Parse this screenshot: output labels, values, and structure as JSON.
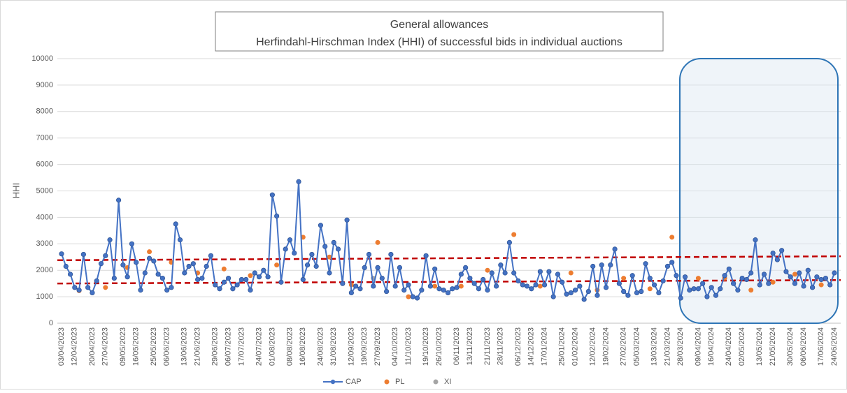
{
  "chart_data": {
    "type": "line",
    "title": "General allowances",
    "subtitle": "Herfindahl-Hirschman Index (HHI) of successful bids in individual auctions",
    "y_label": "HHI",
    "categories": [
      "03/04/2023",
      null,
      null,
      "12/04/2023",
      null,
      null,
      null,
      "20/04/2023",
      null,
      null,
      "27/04/2023",
      null,
      null,
      null,
      "09/05/2023",
      null,
      null,
      "16/05/2023",
      null,
      null,
      null,
      "25/05/2023",
      null,
      null,
      "06/06/2023",
      null,
      null,
      null,
      "13/06/2023",
      null,
      null,
      "21/06/2023",
      null,
      null,
      null,
      "29/06/2023",
      null,
      null,
      "06/07/2023",
      null,
      null,
      "17/07/2023",
      null,
      null,
      null,
      "24/07/2023",
      null,
      null,
      "01/08/2023",
      null,
      null,
      null,
      "08/08/2023",
      null,
      null,
      "16/08/2023",
      null,
      null,
      null,
      "24/08/2023",
      null,
      null,
      "31/08/2023",
      null,
      null,
      null,
      "12/09/2023",
      null,
      null,
      "19/09/2023",
      null,
      null,
      "27/09/2023",
      null,
      null,
      null,
      "04/10/2023",
      null,
      null,
      "11/10/2023",
      null,
      null,
      null,
      "19/10/2023",
      null,
      null,
      "26/10/2023",
      null,
      null,
      null,
      "06/11/2023",
      null,
      null,
      "13/11/2023",
      null,
      null,
      null,
      "21/11/2023",
      null,
      null,
      "28/11/2023",
      null,
      null,
      null,
      "06/12/2023",
      null,
      null,
      "14/12/2023",
      null,
      null,
      "17/01/2024",
      null,
      null,
      null,
      "25/01/2024",
      null,
      null,
      "01/02/2024",
      null,
      null,
      null,
      "12/02/2024",
      null,
      null,
      "19/02/2024",
      null,
      null,
      null,
      "27/02/2024",
      null,
      null,
      "05/03/2024",
      null,
      null,
      null,
      "13/03/2024",
      null,
      null,
      "21/03/2024",
      null,
      null,
      "28/03/2024",
      null,
      null,
      null,
      "09/04/2024",
      null,
      null,
      "16/04/2024",
      null,
      null,
      null,
      "24/04/2024",
      null,
      null,
      "02/05/2024",
      null,
      null,
      null,
      "13/05/2024",
      null,
      null,
      "21/05/2024",
      null,
      null,
      null,
      "30/05/2024",
      null,
      null,
      "06/06/2024",
      null,
      null,
      null,
      "17/06/2024",
      null,
      null,
      "24/06/2024"
    ],
    "series": [
      {
        "name": "CAP",
        "color": "#4472c4",
        "kind": "line",
        "values": [
          2620,
          2150,
          1850,
          1350,
          1250,
          2600,
          1350,
          1150,
          1600,
          2250,
          2550,
          3150,
          1700,
          4650,
          2200,
          1750,
          3000,
          2300,
          1250,
          1900,
          2450,
          2350,
          1850,
          1700,
          1250,
          1350,
          3750,
          3150,
          1900,
          2150,
          2250,
          1650,
          1700,
          2150,
          2550,
          1450,
          1300,
          1550,
          1700,
          1300,
          1450,
          1650,
          1650,
          1250,
          1900,
          1750,
          2000,
          1750,
          4850,
          4050,
          1550,
          2800,
          3150,
          2650,
          5350,
          1650,
          2200,
          2600,
          2150,
          3700,
          2900,
          1900,
          3050,
          2800,
          1500,
          3900,
          1150,
          1400,
          1300,
          2100,
          2600,
          1400,
          2100,
          1700,
          1200,
          2600,
          1400,
          2100,
          1250,
          1450,
          1000,
          950,
          1250,
          2550,
          1400,
          2050,
          1300,
          1250,
          1150,
          1300,
          1350,
          1850,
          2100,
          1700,
          1500,
          1300,
          1650,
          1250,
          1900,
          1400,
          2200,
          1900,
          3050,
          1900,
          1600,
          1450,
          1400,
          1300,
          1450,
          1950,
          1450,
          1950,
          1000,
          1850,
          1550,
          1100,
          1150,
          1250,
          1400,
          900,
          1200,
          2150,
          1050,
          2200,
          1350,
          2200,
          2800,
          1500,
          1200,
          1050,
          1800,
          1150,
          1200,
          2250,
          1700,
          1450,
          1150,
          1600,
          2150,
          2300,
          1800,
          950,
          1750,
          1250,
          1300,
          1300,
          1500,
          1000,
          1350,
          1050,
          1300,
          1800,
          2050,
          1500,
          1250,
          1700,
          1650,
          1900,
          3150,
          1450,
          1850,
          1500,
          2650,
          2400,
          2750,
          1950,
          1750,
          1500,
          1900,
          1400,
          2000,
          1350,
          1750,
          1650,
          1700,
          1450,
          1900
        ]
      },
      {
        "name": "PL",
        "color": "#ed7d31",
        "kind": "scatter",
        "values": [
          null,
          null,
          null,
          null,
          1230,
          null,
          null,
          null,
          null,
          null,
          1350,
          null,
          null,
          null,
          null,
          2100,
          null,
          null,
          null,
          null,
          2700,
          null,
          null,
          null,
          null,
          2300,
          null,
          null,
          null,
          null,
          null,
          1900,
          null,
          null,
          null,
          null,
          null,
          2050,
          null,
          null,
          null,
          null,
          null,
          1800,
          null,
          null,
          null,
          null,
          null,
          2200,
          null,
          null,
          null,
          null,
          null,
          3250,
          null,
          null,
          null,
          null,
          null,
          2500,
          null,
          null,
          null,
          null,
          1450,
          null,
          null,
          null,
          null,
          null,
          3050,
          null,
          null,
          null,
          null,
          null,
          null,
          1000,
          null,
          null,
          null,
          null,
          null,
          1400,
          null,
          null,
          null,
          null,
          null,
          1400,
          null,
          null,
          null,
          null,
          null,
          2000,
          null,
          null,
          null,
          null,
          null,
          3350,
          null,
          null,
          null,
          null,
          null,
          1400,
          null,
          null,
          null,
          null,
          null,
          null,
          1900,
          null,
          null,
          null,
          null,
          null,
          1250,
          null,
          null,
          null,
          null,
          null,
          1700,
          null,
          null,
          null,
          null,
          null,
          1300,
          null,
          null,
          null,
          null,
          3250,
          null,
          null,
          null,
          null,
          null,
          1700,
          null,
          null,
          null,
          null,
          null,
          1700,
          null,
          null,
          null,
          null,
          null,
          1250,
          null,
          null,
          null,
          null,
          1550,
          null,
          null,
          null,
          null,
          1850,
          null,
          null,
          null,
          null,
          null,
          1450,
          null,
          null,
          null
        ]
      },
      {
        "name": "XI",
        "color": "#a5a5a5",
        "kind": "scatter",
        "values": [
          null,
          null,
          null,
          null,
          null,
          null,
          null,
          null,
          null,
          null,
          null,
          null,
          null,
          null,
          null,
          null,
          null,
          null,
          null,
          null,
          null,
          null,
          null,
          null,
          null,
          null,
          null,
          null,
          null,
          null,
          null,
          null,
          null,
          null,
          null,
          null,
          null,
          null,
          null,
          null,
          null,
          null,
          null,
          null,
          null,
          null,
          null,
          null,
          null,
          null,
          null,
          null,
          null,
          null,
          null,
          null,
          null,
          null,
          null,
          null,
          null,
          null,
          null,
          null,
          null,
          null,
          null,
          null,
          null,
          null,
          null,
          1700,
          null,
          null,
          null,
          null,
          null,
          null,
          null,
          null,
          null,
          null,
          null,
          null,
          null,
          null,
          null,
          null,
          null,
          null,
          null,
          null,
          null,
          null,
          null,
          null,
          null,
          null,
          null,
          null,
          null,
          null,
          null,
          null,
          null,
          null,
          null,
          null,
          null,
          null,
          null,
          null,
          null,
          null,
          null,
          null,
          null,
          null,
          null,
          null,
          null,
          null,
          null,
          null,
          null,
          null,
          null,
          null,
          null,
          null,
          null,
          null,
          null,
          null,
          null,
          null,
          null,
          null,
          null,
          null,
          null,
          null,
          null,
          null,
          null,
          null,
          null,
          null,
          null,
          null,
          null,
          null,
          null,
          null,
          null,
          null,
          null,
          null,
          null,
          null,
          null,
          null,
          null,
          null,
          null,
          null,
          null,
          null,
          null,
          null,
          null,
          null,
          null,
          null,
          null,
          null,
          null
        ]
      }
    ],
    "reference_lines": [
      {
        "color": "#c00000",
        "values": [
          2380,
          2530
        ]
      },
      {
        "color": "#c00000",
        "values": [
          1500,
          1630
        ]
      }
    ],
    "ylim": [
      0,
      10000
    ],
    "yticks": [
      0,
      1000,
      2000,
      3000,
      4000,
      5000,
      6000,
      7000,
      8000,
      9000,
      10000
    ],
    "grid": true,
    "legend": "bottom"
  }
}
